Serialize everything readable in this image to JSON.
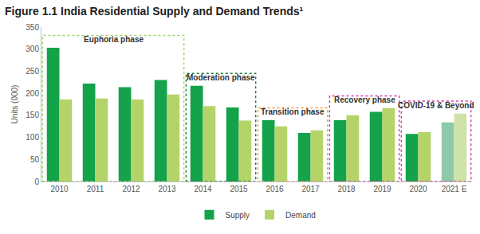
{
  "chart_data": {
    "type": "bar",
    "title": "Figure 1.1 India Residential Supply and Demand Trends¹",
    "y_label": "Units (000)",
    "categories": [
      "2010",
      "2011",
      "2012",
      "2013",
      "2014",
      "2015",
      "2016",
      "2017",
      "2018",
      "2019",
      "2020",
      "2021 E"
    ],
    "series": [
      {
        "name": "Supply",
        "color": "#14a24b",
        "colors": [
          "#14a24b",
          "#14a24b",
          "#14a24b",
          "#14a24b",
          "#14a24b",
          "#14a24b",
          "#14a24b",
          "#14a24b",
          "#14a24b",
          "#14a24b",
          "#14a24b",
          "#8ec9a8"
        ],
        "values": [
          303,
          222,
          214,
          230,
          217,
          168,
          139,
          110,
          139,
          158,
          108,
          134
        ]
      },
      {
        "name": "Demand",
        "color": "#b4d46a",
        "colors": [
          "#b4d46a",
          "#b4d46a",
          "#b4d46a",
          "#b4d46a",
          "#b4d46a",
          "#b4d46a",
          "#b4d46a",
          "#b4d46a",
          "#b4d46a",
          "#b4d46a",
          "#b4d46a",
          "#cfe3a6"
        ],
        "values": [
          186,
          188,
          186,
          197,
          171,
          138,
          125,
          116,
          150,
          166,
          112,
          154
        ]
      }
    ],
    "phases": [
      {
        "label": "Euphoria phase",
        "start": "2010",
        "end": "2013",
        "color": "#9ed36a"
      },
      {
        "label": "Moderation phase",
        "start": "2014",
        "end": "2015",
        "color": "#1f7a3a"
      },
      {
        "label": "Transition phase",
        "start": "2016",
        "end": "2017",
        "color": "#f0a04b"
      },
      {
        "label": "Recovery phase",
        "start": "2018",
        "end": "2019",
        "color": "#d63ea6"
      },
      {
        "label": "COVID-19 & Beyond",
        "start": "2020",
        "end": "2021 E",
        "color": "#d63ea6"
      }
    ],
    "ylim": [
      0,
      350
    ],
    "yticks": [
      0,
      50,
      100,
      150,
      200,
      250,
      300,
      350
    ],
    "grid": false,
    "legend": "bottom"
  }
}
